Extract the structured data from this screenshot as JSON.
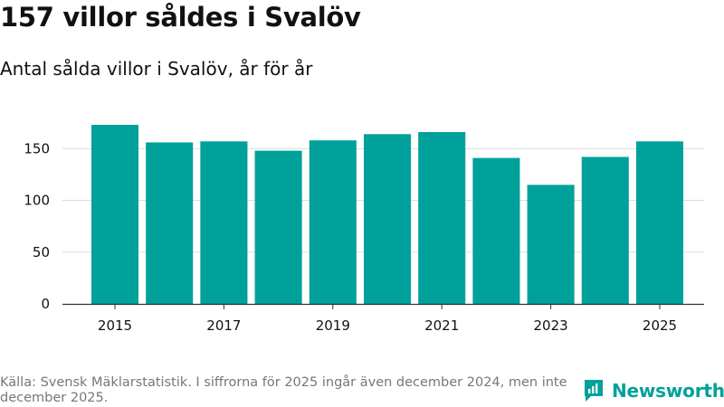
{
  "title": "157 villor såldes i Svalöv",
  "subtitle": "Antal sålda villor i Svalöv, år för år",
  "footer": {
    "source": "Källa: Svensk Mäklarstatistik. I siffrorna för 2025 ingår även december 2024, men inte december 2025.",
    "brand_name": "Newsworthy",
    "brand_logo_icon": "newsworthy-logo-icon"
  },
  "colors": {
    "bar": "#00a19a",
    "gridline": "#dddddd",
    "axis": "#333333",
    "brand": "#00a19a"
  },
  "chart_data": {
    "type": "bar",
    "title": "157 villor såldes i Svalöv",
    "subtitle": "Antal sålda villor i Svalöv, år för år",
    "xlabel": "",
    "ylabel": "",
    "categories": [
      "2015",
      "2016",
      "2017",
      "2018",
      "2019",
      "2020",
      "2021",
      "2022",
      "2023",
      "2024",
      "2025"
    ],
    "values": [
      173,
      156,
      157,
      148,
      158,
      164,
      166,
      141,
      115,
      142,
      157
    ],
    "x_tick_labels": [
      "2015",
      "2017",
      "2019",
      "2021",
      "2023",
      "2025"
    ],
    "y_ticks": [
      0,
      50,
      100,
      150
    ],
    "ylim": [
      0,
      180
    ],
    "grid": true,
    "legend": "none"
  }
}
